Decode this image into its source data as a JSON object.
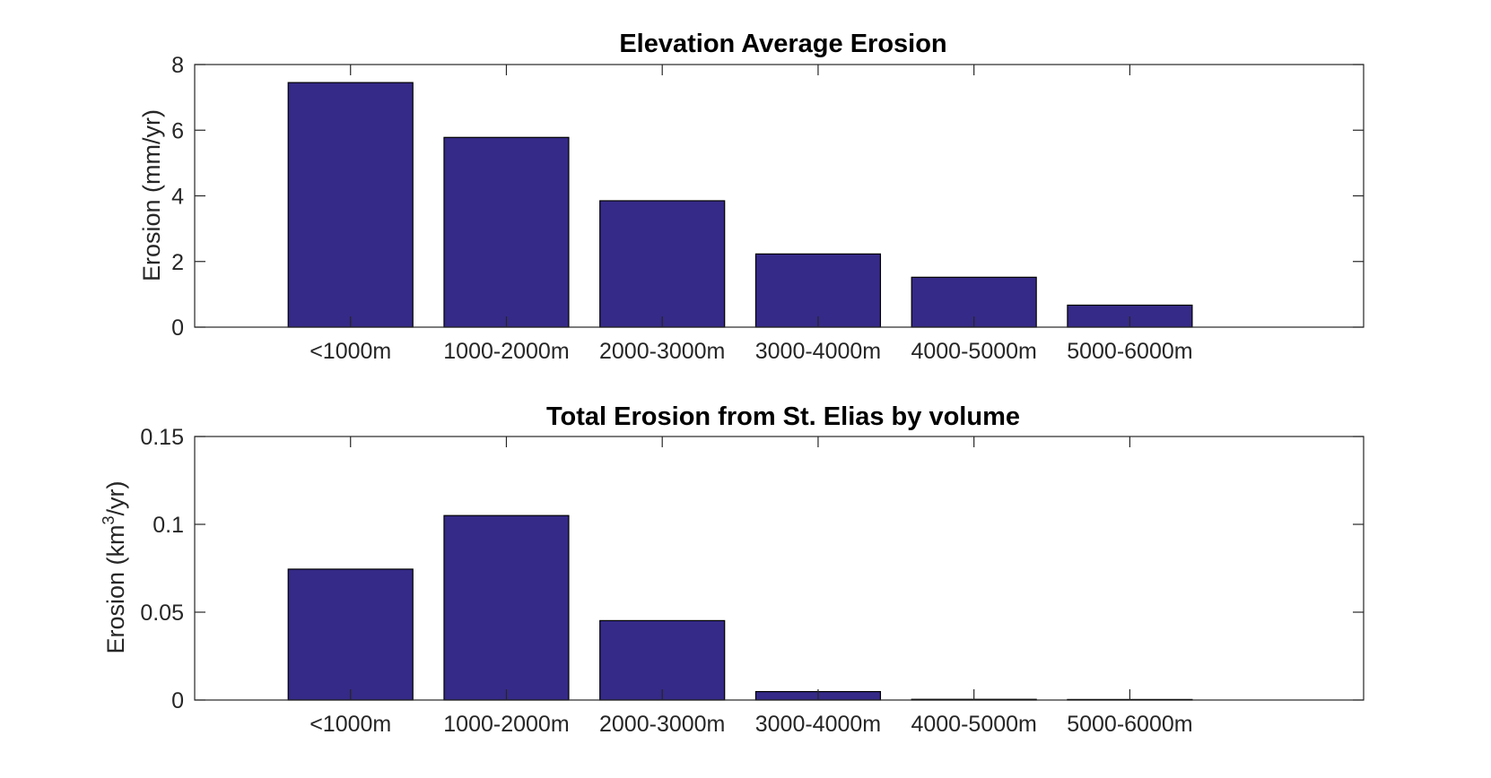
{
  "chart_data": [
    {
      "type": "bar",
      "title": "Elevation Average Erosion",
      "xlabel": "",
      "ylabel": "Erosion (mm/yr)",
      "categories": [
        "<1000m",
        "1000-2000m",
        "2000-3000m",
        "3000-4000m",
        "4000-5000m",
        "5000-6000m"
      ],
      "values": [
        7.45,
        5.78,
        3.85,
        2.23,
        1.52,
        0.67
      ],
      "ylim": [
        0,
        8
      ],
      "yticks": [
        "0",
        "2",
        "4",
        "6",
        "8"
      ],
      "ytick_values": [
        0,
        2,
        4,
        6,
        8
      ],
      "bar_color": "#352A87",
      "grid": false
    },
    {
      "type": "bar",
      "title": "Total Erosion from St. Elias by volume",
      "xlabel": "",
      "ylabel": "Erosion (km",
      "ylabel_superscript": "3",
      "ylabel_suffix": "/yr)",
      "categories": [
        "<1000m",
        "1000-2000m",
        "2000-3000m",
        "3000-4000m",
        "4000-5000m",
        "5000-6000m"
      ],
      "values": [
        0.0745,
        0.105,
        0.0452,
        0.0048,
        0.0004,
        0.0003
      ],
      "ylim": [
        0,
        0.15
      ],
      "yticks": [
        "0",
        "0.05",
        "0.1",
        "0.15"
      ],
      "ytick_values": [
        0,
        0.05,
        0.1,
        0.15
      ],
      "bar_color": "#352A87",
      "grid": false
    }
  ]
}
